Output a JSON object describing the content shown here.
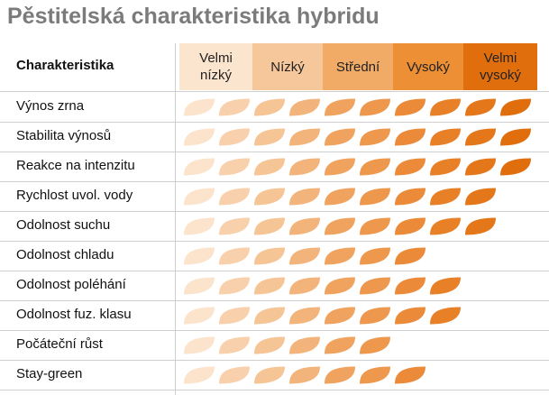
{
  "header": {
    "title": "Pěstitelská charakteristika hybridu"
  },
  "table": {
    "column_header": "Charakteristika",
    "levels": [
      {
        "label": "Velmi nízký",
        "color": "#fce5cf"
      },
      {
        "label": "Nízký",
        "color": "#f7c79c"
      },
      {
        "label": "Střední",
        "color": "#f2ab66"
      },
      {
        "label": "Vysoký",
        "color": "#ec8f35"
      },
      {
        "label": "Velmi vysoký",
        "color": "#e06e0d"
      }
    ],
    "leaf_colors": [
      "#fbe3cc",
      "#f8d0ab",
      "#f6c596",
      "#f3b47c",
      "#f0a35f",
      "#ee984e",
      "#eb8a38",
      "#e88028",
      "#e4771a",
      "#e06e0d"
    ],
    "rows": [
      {
        "name": "Výnos zrna",
        "score": 10
      },
      {
        "name": "Stabilita výnosů",
        "score": 10
      },
      {
        "name": "Reakce na intenzitu",
        "score": 10
      },
      {
        "name": "Rychlost uvol. vody",
        "score": 9
      },
      {
        "name": "Odolnost suchu",
        "score": 9
      },
      {
        "name": "Odolnost chladu",
        "score": 7
      },
      {
        "name": "Odolnost poléhání",
        "score": 8
      },
      {
        "name": "Odolnost fuz. klasu",
        "score": 8
      },
      {
        "name": "Počáteční růst",
        "score": 6
      },
      {
        "name": "Stay-green",
        "score": 7
      }
    ]
  }
}
